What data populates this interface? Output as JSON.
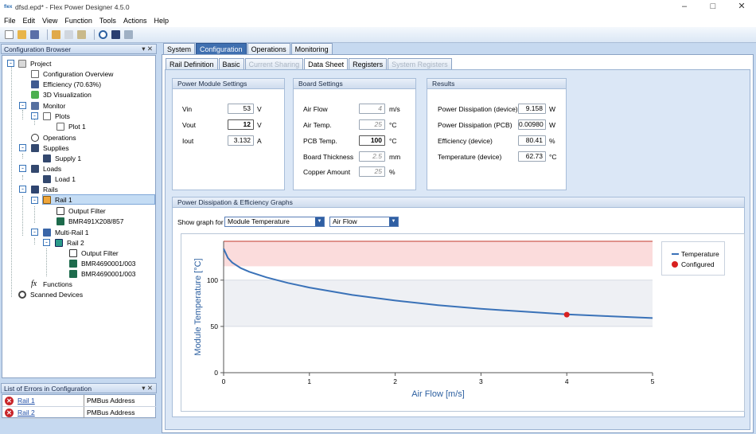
{
  "window": {
    "logo": "flex",
    "title": "dfsd.epd* - Flex Power Designer 4.5.0"
  },
  "menu": [
    "File",
    "Edit",
    "View",
    "Function",
    "Tools",
    "Actions",
    "Help"
  ],
  "config_browser": {
    "title": "Configuration Browser",
    "nodes": {
      "project": "Project",
      "overview": "Configuration Overview",
      "efficiency": "Efficiency (70.63%)",
      "viz": "3D Visualization",
      "monitor": "Monitor",
      "plots": "Plots",
      "plot1": "Plot 1",
      "operations": "Operations",
      "supplies": "Supplies",
      "supply1": "Supply 1",
      "loads": "Loads",
      "load1": "Load 1",
      "rails": "Rails",
      "rail1": "Rail 1",
      "outfilter1": "Output Filter",
      "bmr1": "BMR491X208/857",
      "multirail": "Multi-Rail 1",
      "rail2": "Rail 2",
      "outfilter2": "Output Filter",
      "bmr2a": "BMR4690001/003",
      "bmr2b": "BMR4690001/003",
      "functions": "Functions",
      "scanned": "Scanned Devices"
    }
  },
  "errors": {
    "title": "List of Errors in Configuration",
    "rows": [
      {
        "link": "Rail 1",
        "desc": "PMBus Address"
      },
      {
        "link": "Rail 2",
        "desc": "PMBus Address"
      }
    ]
  },
  "tabs": {
    "top": [
      "System",
      "Configuration",
      "Operations",
      "Monitoring"
    ],
    "sub": [
      "Rail Definition",
      "Basic",
      "Current Sharing",
      "Data Sheet",
      "Registers",
      "System Registers"
    ]
  },
  "power_module": {
    "title": "Power Module Settings",
    "vin": {
      "label": "Vin",
      "value": "53",
      "unit": "V"
    },
    "vout": {
      "label": "Vout",
      "value": "12",
      "unit": "V"
    },
    "iout": {
      "label": "Iout",
      "value": "3.132",
      "unit": "A"
    }
  },
  "board": {
    "title": "Board Settings",
    "airflow": {
      "label": "Air Flow",
      "value": "4",
      "unit": "m/s"
    },
    "airtemp": {
      "label": "Air Temp.",
      "value": "25",
      "unit": "°C"
    },
    "pcbtemp": {
      "label": "PCB Temp.",
      "value": "100",
      "unit": "°C"
    },
    "thickness": {
      "label": "Board Thickness",
      "value": "2.5",
      "unit": "mm"
    },
    "copper": {
      "label": "Copper Amount",
      "value": "25",
      "unit": "%"
    }
  },
  "results": {
    "title": "Results",
    "pdev": {
      "label": "Power Dissipation (device)",
      "value": "9.158",
      "unit": "W"
    },
    "ppcb": {
      "label": "Power Dissipation (PCB)",
      "value": "0.00980",
      "unit": "W"
    },
    "eff": {
      "label": "Efficiency (device)",
      "value": "80.41",
      "unit": "%"
    },
    "temp": {
      "label": "Temperature (device)",
      "value": "62.73",
      "unit": "°C"
    }
  },
  "graphs": {
    "title": "Power Dissipation & Efficiency Graphs",
    "show_label": "Show graph for",
    "select1": "Module Temperature",
    "select2": "Air Flow"
  },
  "chart_data": {
    "type": "line",
    "xlabel": "Air Flow [m/s]",
    "ylabel": "Module Temperature [°C]",
    "xlim": [
      0,
      5
    ],
    "ylim": [
      0,
      142
    ],
    "xticks": [
      "0",
      "1",
      "2",
      "3",
      "4",
      "5"
    ],
    "yticks": [
      "0",
      "50",
      "100"
    ],
    "bands": [
      {
        "from": 115,
        "to": 142,
        "color": "#fbdcdc"
      },
      {
        "from": 50,
        "to": 100,
        "color": "#eef0f4"
      }
    ],
    "limit_line": 142,
    "series": [
      {
        "name": "Temperature",
        "color": "#3a72b8",
        "x": [
          0,
          0.05,
          0.1,
          0.2,
          0.3,
          0.5,
          0.75,
          1,
          1.5,
          2,
          2.5,
          3,
          3.5,
          4,
          4.5,
          5
        ],
        "y": [
          134,
          124,
          119,
          113,
          109,
          103,
          97,
          92,
          84,
          78,
          73,
          69,
          66,
          63,
          61,
          59
        ]
      }
    ],
    "configured": {
      "name": "Configured",
      "x": 4,
      "y": 62.7,
      "color": "#d8201f"
    },
    "legend": "right"
  }
}
